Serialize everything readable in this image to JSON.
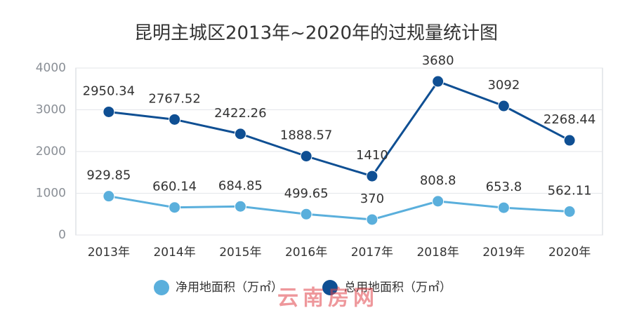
{
  "chart_data": {
    "type": "line",
    "title": "昆明主城区2013年~2020年的过规量统计图",
    "categories": [
      "2013年",
      "2014年",
      "2015年",
      "2016年",
      "2017年",
      "2018年",
      "2019年",
      "2020年"
    ],
    "series": [
      {
        "name": "净用地面积（万㎡）",
        "color": "#5aafdc",
        "values": [
          929.85,
          660.14,
          684.85,
          499.65,
          370,
          808.8,
          653.8,
          562.11
        ]
      },
      {
        "name": "总用地面积（万㎡）",
        "color": "#0f4f93",
        "values": [
          2950.34,
          2767.52,
          2422.26,
          1888.57,
          1410,
          3680,
          3092,
          2268.44
        ]
      }
    ],
    "ylim": [
      0,
      4000
    ],
    "yticks": [
      0,
      1000,
      2000,
      3000,
      4000
    ],
    "grid": true,
    "legend": "bottom",
    "watermark": "云南房网"
  }
}
